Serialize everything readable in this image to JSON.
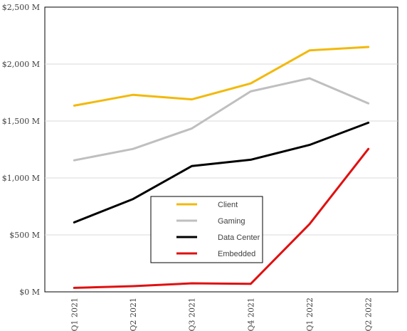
{
  "chart_data": {
    "type": "line",
    "categories": [
      "Q1 2021",
      "Q2 2021",
      "Q3 2021",
      "Q4 2021",
      "Q1 2022",
      "Q2 2022"
    ],
    "series": [
      {
        "name": "Client",
        "color": "#f2b90c",
        "values": [
          1635,
          1730,
          1690,
          1830,
          2120,
          2150
        ]
      },
      {
        "name": "Gaming",
        "color": "#bfbfbf",
        "values": [
          1155,
          1255,
          1435,
          1760,
          1875,
          1655
        ]
      },
      {
        "name": "Data Center",
        "color": "#000000",
        "values": [
          610,
          815,
          1105,
          1160,
          1290,
          1485
        ]
      },
      {
        "name": "Embedded",
        "color": "#e01010",
        "values": [
          35,
          50,
          75,
          70,
          595,
          1255
        ]
      }
    ],
    "y_ticks": [
      "$0 M",
      "$500 M",
      "$1,000 M",
      "$1,500 M",
      "$2,000 M",
      "$2,500 M"
    ],
    "ylim": [
      0,
      2500
    ],
    "grid": true,
    "legend_position": "center-bottom (inside plot)"
  }
}
